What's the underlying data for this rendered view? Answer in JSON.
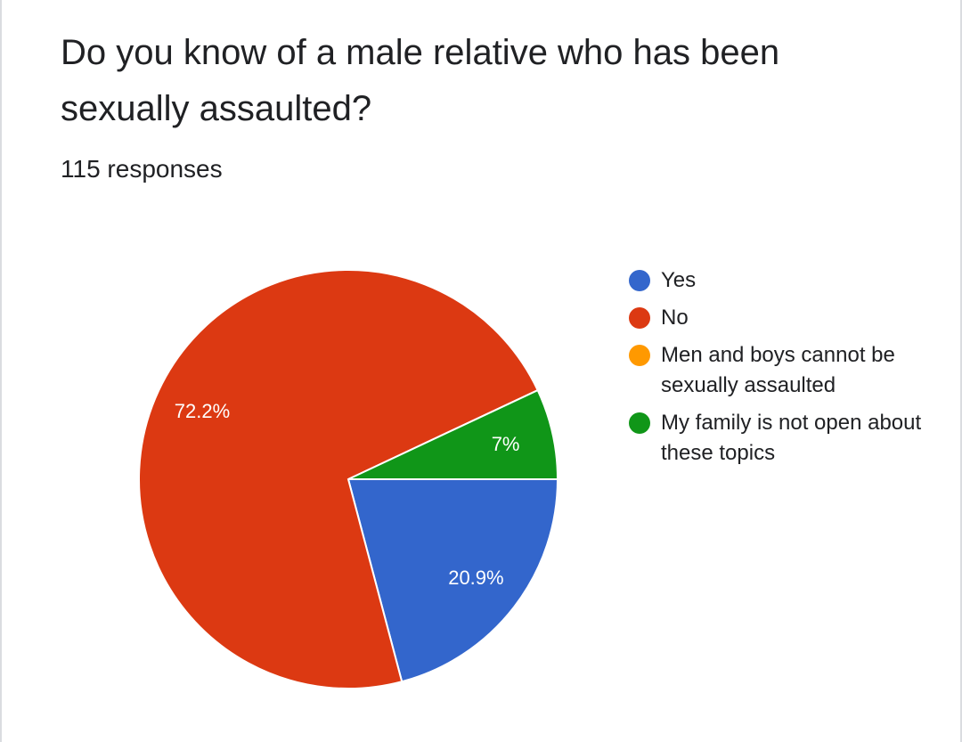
{
  "question": {
    "title": "Do you know of a male relative who has been sexually assaulted?",
    "responses": "115 responses"
  },
  "chart_data": {
    "type": "pie",
    "total_responses": 115,
    "slices": [
      {
        "label": "Yes",
        "value": 20.9,
        "display": "20.9%",
        "color": "#3366cc"
      },
      {
        "label": "No",
        "value": 72.2,
        "display": "72.2%",
        "color": "#dc3912"
      },
      {
        "label": "Men and boys cannot be sexually assaulted",
        "value": 0,
        "display": "",
        "color": "#ff9900"
      },
      {
        "label": "My family is not open about these topics",
        "value": 7.0,
        "display": "7%",
        "color": "#109618"
      }
    ],
    "legend_position": "right"
  }
}
